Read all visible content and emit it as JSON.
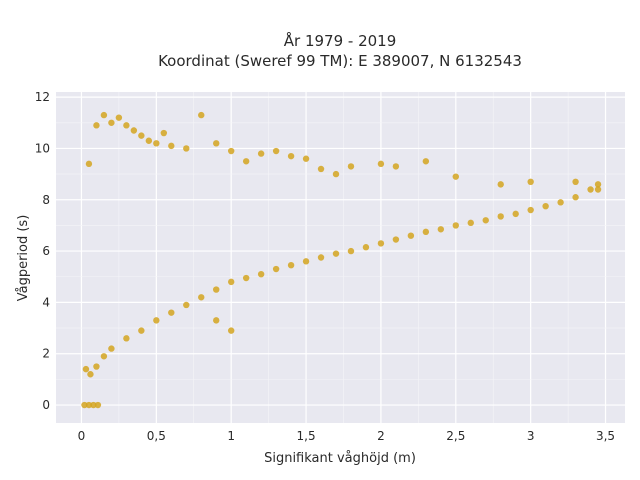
{
  "chart_data": {
    "type": "scatter",
    "title_line1": "År 1979 - 2019",
    "title_line2": "Koordinat (Sweref 99 TM): E 389007, N 6132543",
    "xlabel": "Signifikant våghöjd (m)",
    "ylabel": "Vågperiod (s)",
    "xlim": [
      -0.17,
      3.63
    ],
    "ylim": [
      -0.7,
      12.2
    ],
    "x_ticks": [
      0,
      0.5,
      1,
      1.5,
      2,
      2.5,
      3,
      3.5
    ],
    "x_tick_labels": [
      "0",
      "0,5",
      "1",
      "1,5",
      "2",
      "2,5",
      "3",
      "3,5"
    ],
    "y_ticks": [
      0,
      2,
      4,
      6,
      8,
      10,
      12
    ],
    "y_tick_labels": [
      "0",
      "2",
      "4",
      "6",
      "8",
      "10",
      "12"
    ],
    "grid": true,
    "marker_color": "#D4A520",
    "background_color": "#E8E8F0",
    "series": [
      {
        "points": [
          [
            0.02,
            0.0
          ],
          [
            0.05,
            0.0
          ],
          [
            0.08,
            0.0
          ],
          [
            0.11,
            0.0
          ],
          [
            0.03,
            1.4
          ],
          [
            0.06,
            1.2
          ],
          [
            0.1,
            1.5
          ],
          [
            0.15,
            1.9
          ],
          [
            0.2,
            2.2
          ],
          [
            0.3,
            2.6
          ],
          [
            0.4,
            2.9
          ],
          [
            0.5,
            3.3
          ],
          [
            0.6,
            3.6
          ],
          [
            0.7,
            3.9
          ],
          [
            0.8,
            4.2
          ],
          [
            0.9,
            4.5
          ],
          [
            1.0,
            4.8
          ],
          [
            1.1,
            4.95
          ],
          [
            1.2,
            5.1
          ],
          [
            1.3,
            5.3
          ],
          [
            1.4,
            5.45
          ],
          [
            1.5,
            5.6
          ],
          [
            1.6,
            5.75
          ],
          [
            1.7,
            5.9
          ],
          [
            1.8,
            6.0
          ],
          [
            1.9,
            6.15
          ],
          [
            2.0,
            6.3
          ],
          [
            2.1,
            6.45
          ],
          [
            2.2,
            6.6
          ],
          [
            2.3,
            6.75
          ],
          [
            2.4,
            6.85
          ],
          [
            2.5,
            7.0
          ],
          [
            2.6,
            7.1
          ],
          [
            2.7,
            7.2
          ],
          [
            2.8,
            7.35
          ],
          [
            2.9,
            7.45
          ],
          [
            3.0,
            7.6
          ],
          [
            3.1,
            7.75
          ],
          [
            3.2,
            7.9
          ],
          [
            3.3,
            8.1
          ],
          [
            3.4,
            8.4
          ],
          [
            3.45,
            8.6
          ],
          [
            0.05,
            9.4
          ],
          [
            0.1,
            10.9
          ],
          [
            0.15,
            11.3
          ],
          [
            0.2,
            11.0
          ],
          [
            0.25,
            11.2
          ],
          [
            0.3,
            10.9
          ],
          [
            0.35,
            10.7
          ],
          [
            0.4,
            10.5
          ],
          [
            0.45,
            10.3
          ],
          [
            0.5,
            10.2
          ],
          [
            0.55,
            10.6
          ],
          [
            0.6,
            10.1
          ],
          [
            0.7,
            10.0
          ],
          [
            0.8,
            11.3
          ],
          [
            0.9,
            10.2
          ],
          [
            1.0,
            9.9
          ],
          [
            1.1,
            9.5
          ],
          [
            1.2,
            9.8
          ],
          [
            1.3,
            9.9
          ],
          [
            1.4,
            9.7
          ],
          [
            1.5,
            9.6
          ],
          [
            1.6,
            9.2
          ],
          [
            1.7,
            9.0
          ],
          [
            1.8,
            9.3
          ],
          [
            2.0,
            9.4
          ],
          [
            2.1,
            9.3
          ],
          [
            2.3,
            9.5
          ],
          [
            2.5,
            8.9
          ],
          [
            2.8,
            8.6
          ],
          [
            3.0,
            8.7
          ],
          [
            3.3,
            8.7
          ],
          [
            3.45,
            8.4
          ],
          [
            0.9,
            3.3
          ],
          [
            1.0,
            2.9
          ]
        ]
      }
    ]
  }
}
